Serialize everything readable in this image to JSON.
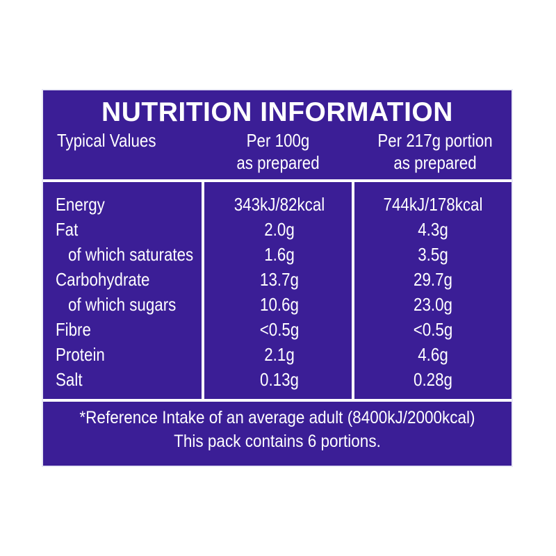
{
  "panel": {
    "title": "NUTRITION INFORMATION",
    "header": {
      "label": "Typical Values",
      "col1_line1": "Per 100g",
      "col1_line2": "as prepared",
      "col2_line1": "Per 217g portion",
      "col2_line2": "as prepared"
    },
    "rows": [
      {
        "nutrient": "Energy",
        "per100g": "343kJ/82kcal",
        "perPortion": "744kJ/178kcal"
      },
      {
        "nutrient": "Fat",
        "per100g": "2.0g",
        "perPortion": "4.3g"
      },
      {
        "nutrient": "of which saturates",
        "per100g": "1.6g",
        "perPortion": "3.5g"
      },
      {
        "nutrient": "Carbohydrate",
        "per100g": "13.7g",
        "perPortion": "29.7g"
      },
      {
        "nutrient": "of which sugars",
        "per100g": "10.6g",
        "perPortion": "23.0g"
      },
      {
        "nutrient": "Fibre",
        "per100g": "<0.5g",
        "perPortion": "<0.5g"
      },
      {
        "nutrient": "Protein",
        "per100g": "2.1g",
        "perPortion": "4.6g"
      },
      {
        "nutrient": "Salt",
        "per100g": "0.13g",
        "perPortion": "0.28g"
      }
    ],
    "footnote_line1": "*Reference Intake of an average adult (8400kJ/2000kcal)",
    "footnote_line2": "This pack contains 6 portions.",
    "colors": {
      "background": "#3b1e96",
      "text": "#ffffff",
      "border": "#e9e9f6"
    }
  }
}
